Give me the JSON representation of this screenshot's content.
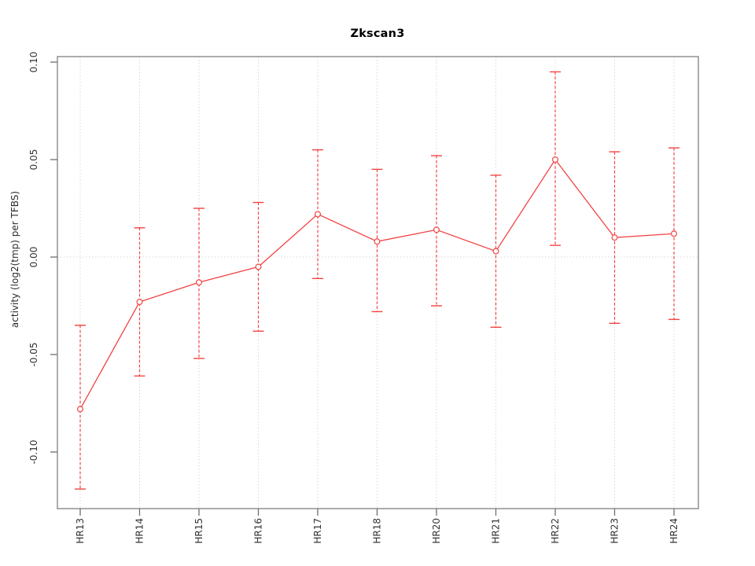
{
  "figure": {
    "title": "Zkscan3"
  },
  "chart_data": {
    "type": "line",
    "title": "Zkscan3",
    "xlabel": "",
    "ylabel": "activity (log2(tmp) per TFBS)",
    "legend": "none",
    "grid": "dotted gray vertical line at each category; dotted horizontal line at y=0",
    "marker": "open-circle",
    "error_bars": true,
    "categories": [
      "HR13",
      "HR14",
      "HR15",
      "HR16",
      "HR17",
      "HR18",
      "HR20",
      "HR21",
      "HR22",
      "HR23",
      "HR24"
    ],
    "series": [
      {
        "name": "activity",
        "values": [
          -0.078,
          -0.023,
          -0.013,
          -0.005,
          0.022,
          0.008,
          0.014,
          0.003,
          0.05,
          0.01,
          0.012
        ],
        "err_low": [
          -0.119,
          -0.061,
          -0.052,
          -0.038,
          -0.011,
          -0.028,
          -0.025,
          -0.036,
          0.006,
          -0.034,
          -0.032
        ],
        "err_high": [
          -0.035,
          0.015,
          0.025,
          0.028,
          0.055,
          0.045,
          0.052,
          0.042,
          0.095,
          0.054,
          0.056
        ]
      }
    ],
    "ylim": [
      -0.129,
      0.103
    ],
    "yticks": [
      0.1,
      0.05,
      0.0,
      -0.05,
      -0.1
    ],
    "ytick_labels": [
      "0.10",
      "0.05",
      "0.00",
      "-0.05",
      "-0.10"
    ],
    "colors": {
      "series": "#f24444",
      "marker_fill": "#ffffff",
      "grid": "#d8d8d8",
      "frame": "#888888",
      "tick": "#6e6e6e",
      "tick_text": "#333333",
      "title_text": "#000000"
    }
  }
}
